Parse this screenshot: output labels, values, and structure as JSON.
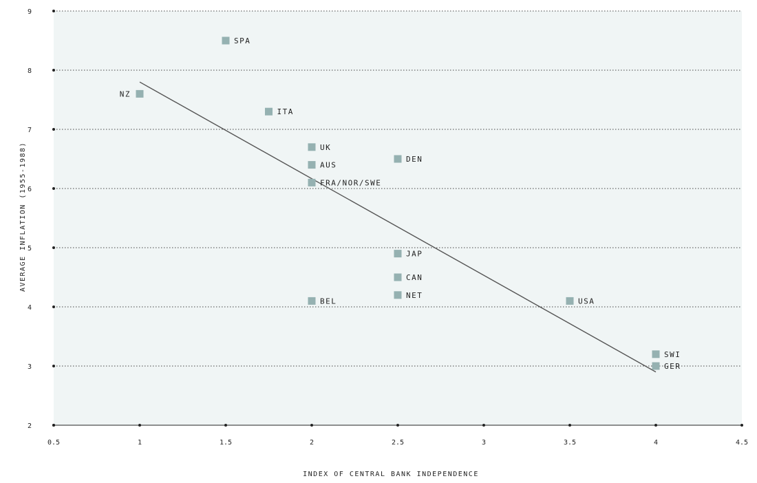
{
  "chart_data": {
    "type": "scatter",
    "xlabel": "INDEX OF CENTRAL BANK INDEPENDENCE",
    "ylabel": "AVERAGE INFLATION (1955-1988)",
    "xlim": [
      0.5,
      4.5
    ],
    "ylim": [
      2,
      9
    ],
    "x_ticks": [
      0.5,
      1,
      1.5,
      2,
      2.5,
      3,
      3.5,
      4,
      4.5
    ],
    "x_tick_labels": [
      "0.5",
      "1",
      "1.5",
      "2",
      "2.5",
      "3",
      "3.5",
      "4",
      "4.5"
    ],
    "y_ticks": [
      2,
      3,
      4,
      5,
      6,
      7,
      8,
      9
    ],
    "y_tick_labels": [
      "2",
      "3",
      "4",
      "5",
      "6",
      "7",
      "8",
      "9"
    ],
    "grid": "horizontal dotted",
    "legend": "none",
    "points": [
      {
        "label": "SPA",
        "x": 1.5,
        "y": 8.5,
        "label_side": "right"
      },
      {
        "label": "NZ",
        "x": 1.0,
        "y": 7.6,
        "label_side": "left"
      },
      {
        "label": "ITA",
        "x": 1.75,
        "y": 7.3,
        "label_side": "right"
      },
      {
        "label": "UK",
        "x": 2.0,
        "y": 6.7,
        "label_side": "right"
      },
      {
        "label": "AUS",
        "x": 2.0,
        "y": 6.4,
        "label_side": "right"
      },
      {
        "label": "FRA/NOR/SWE",
        "x": 2.0,
        "y": 6.1,
        "label_side": "right"
      },
      {
        "label": "DEN",
        "x": 2.5,
        "y": 6.5,
        "label_side": "right"
      },
      {
        "label": "JAP",
        "x": 2.5,
        "y": 4.9,
        "label_side": "right"
      },
      {
        "label": "CAN",
        "x": 2.5,
        "y": 4.5,
        "label_side": "right"
      },
      {
        "label": "NET",
        "x": 2.5,
        "y": 4.2,
        "label_side": "right"
      },
      {
        "label": "BEL",
        "x": 2.0,
        "y": 4.1,
        "label_side": "right"
      },
      {
        "label": "USA",
        "x": 3.5,
        "y": 4.1,
        "label_side": "right"
      },
      {
        "label": "SWI",
        "x": 4.0,
        "y": 3.2,
        "label_side": "right"
      },
      {
        "label": "GER",
        "x": 4.0,
        "y": 3.0,
        "label_side": "right"
      }
    ],
    "trend_line": {
      "x": [
        1.0,
        4.0
      ],
      "y": [
        7.8,
        2.9
      ]
    },
    "colors": {
      "plot_background": "#f0f5f5",
      "marker": "#95b1b1",
      "trend_line": "#555555",
      "grid": "#444444",
      "text": "#222222"
    }
  }
}
